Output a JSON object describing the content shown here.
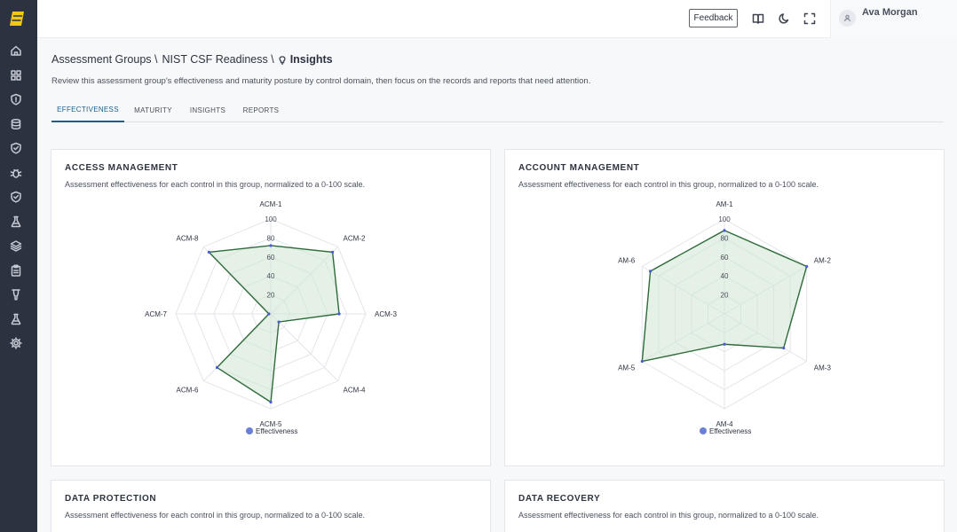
{
  "topbar": {
    "feedback_label": "Feedback",
    "icons": [
      "book-icon",
      "moon-icon",
      "fullscreen-icon"
    ],
    "user_name": "Ava Morgan"
  },
  "sidebar": {
    "icons": [
      "home-icon",
      "grid-icon",
      "shield-icon",
      "database-icon",
      "shield-check-icon",
      "bug-icon",
      "shield-check-icon",
      "flask-icon",
      "layers-icon",
      "clipboard-icon",
      "lightbulb-icon",
      "flask-icon",
      "gear-icon"
    ]
  },
  "breadcrumb": {
    "items": [
      "Assessment Groups \\",
      "NIST CSF Readiness \\"
    ],
    "current": "Insights"
  },
  "page_description": "Review this assessment group's effectiveness and maturity posture by control domain, then focus on the records and reports that need attention.",
  "tabs": [
    {
      "label": "EFFECTIVENESS",
      "active": true
    },
    {
      "label": "MATURITY",
      "active": false
    },
    {
      "label": "INSIGHTS",
      "active": false
    },
    {
      "label": "REPORTS",
      "active": false
    }
  ],
  "colors": {
    "series_stroke": "#2e6b3a",
    "series_fill": "#cfe6d2",
    "legend_dot": "#6b7fd6",
    "point": "#4a5bd4"
  },
  "cards": [
    {
      "title": "ACCESS MANAGEMENT",
      "subtitle": "Assessment effectiveness for each control in this group, normalized to a 0-100 scale.",
      "chart_data": {
        "type": "radar",
        "categories": [
          "ACM-1",
          "ACM-2",
          "ACM-3",
          "ACM-4",
          "ACM-5",
          "ACM-6",
          "ACM-7",
          "ACM-8"
        ],
        "series": [
          {
            "name": "Effectiveness",
            "values": [
              72,
              92,
              72,
              12,
              93,
              80,
              2,
              92
            ]
          }
        ],
        "rlim": [
          0,
          100
        ],
        "ticks": [
          20,
          40,
          60,
          80,
          100
        ],
        "legend": "bottom"
      }
    },
    {
      "title": "ACCOUNT MANAGEMENT",
      "subtitle": "Assessment effectiveness for each control in this group, normalized to a 0-100 scale.",
      "chart_data": {
        "type": "radar",
        "categories": [
          "AM-1",
          "AM-2",
          "AM-3",
          "AM-4",
          "AM-5",
          "AM-6"
        ],
        "series": [
          {
            "name": "Effectiveness",
            "values": [
              88,
              100,
              72,
              32,
              100,
              90
            ]
          }
        ],
        "rlim": [
          0,
          100
        ],
        "ticks": [
          20,
          40,
          60,
          80,
          100
        ],
        "legend": "bottom"
      }
    },
    {
      "title": "DATA PROTECTION",
      "subtitle": "Assessment effectiveness for each control in this group, normalized to a 0-100 scale."
    },
    {
      "title": "DATA RECOVERY",
      "subtitle": "Assessment effectiveness for each control in this group, normalized to a 0-100 scale."
    }
  ]
}
